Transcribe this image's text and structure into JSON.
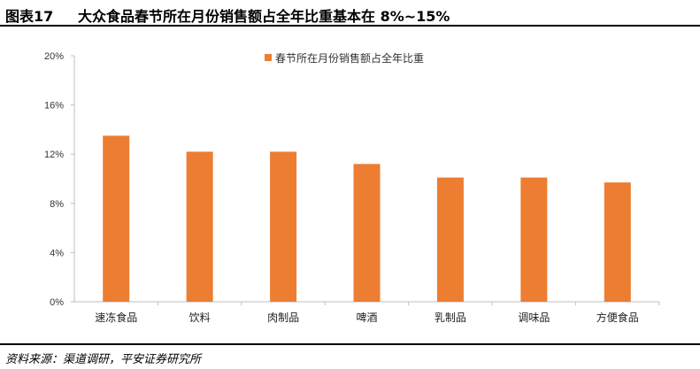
{
  "figure": {
    "label": "图表17",
    "title": "大众食品春节所在月份销售额占全年比重基本在 8%~15%",
    "source": "资料来源：渠道调研，平安证券研究所"
  },
  "colors": {
    "bar": "#ED7D31",
    "axis": "#BFBFBF",
    "text": "#333333"
  },
  "chart_data": {
    "type": "bar",
    "categories": [
      "速冻食品",
      "饮料",
      "肉制品",
      "啤酒",
      "乳制品",
      "调味品",
      "方便食品"
    ],
    "series": [
      {
        "name": "春节所在月份销售额占全年比重",
        "values": [
          13.5,
          12.2,
          12.2,
          11.2,
          10.1,
          10.1,
          9.7
        ]
      }
    ],
    "ylim": [
      0,
      20
    ],
    "yticks": [
      "0%",
      "4%",
      "8%",
      "12%",
      "16%",
      "20%"
    ],
    "xlabel": "",
    "ylabel": "",
    "grid": false,
    "legend": "top-center"
  }
}
